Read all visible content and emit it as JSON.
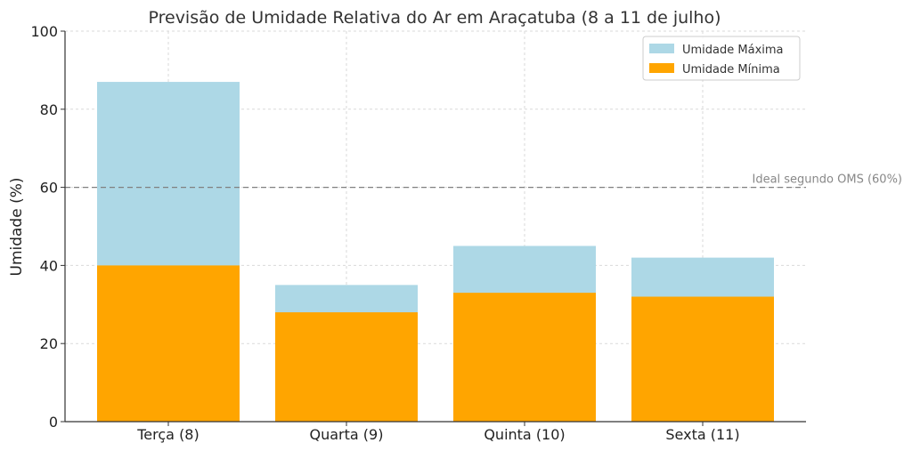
{
  "chart_data": {
    "type": "bar",
    "title": "Previsão de Umidade Relativa do Ar em Araçatuba (8 a 11 de julho)",
    "xlabel": "",
    "ylabel": "Umidade (%)",
    "ylim": [
      0,
      100
    ],
    "y_ticks": [
      "0",
      "20",
      "40",
      "60",
      "80",
      "100"
    ],
    "categories": [
      "Terça (8)",
      "Quarta (9)",
      "Quinta (10)",
      "Sexta (11)"
    ],
    "series": [
      {
        "name": "Umidade Máxima",
        "color": "#add8e6",
        "values": [
          87,
          35,
          45,
          42
        ]
      },
      {
        "name": "Umidade Mínima",
        "color": "#ffa500",
        "values": [
          40,
          28,
          33,
          32
        ]
      }
    ],
    "reference_line": {
      "value": 60,
      "label": "Ideal segundo OMS (60%)",
      "color": "#808080",
      "style": "dashed"
    },
    "grid": true,
    "legend_position": "top-right"
  }
}
